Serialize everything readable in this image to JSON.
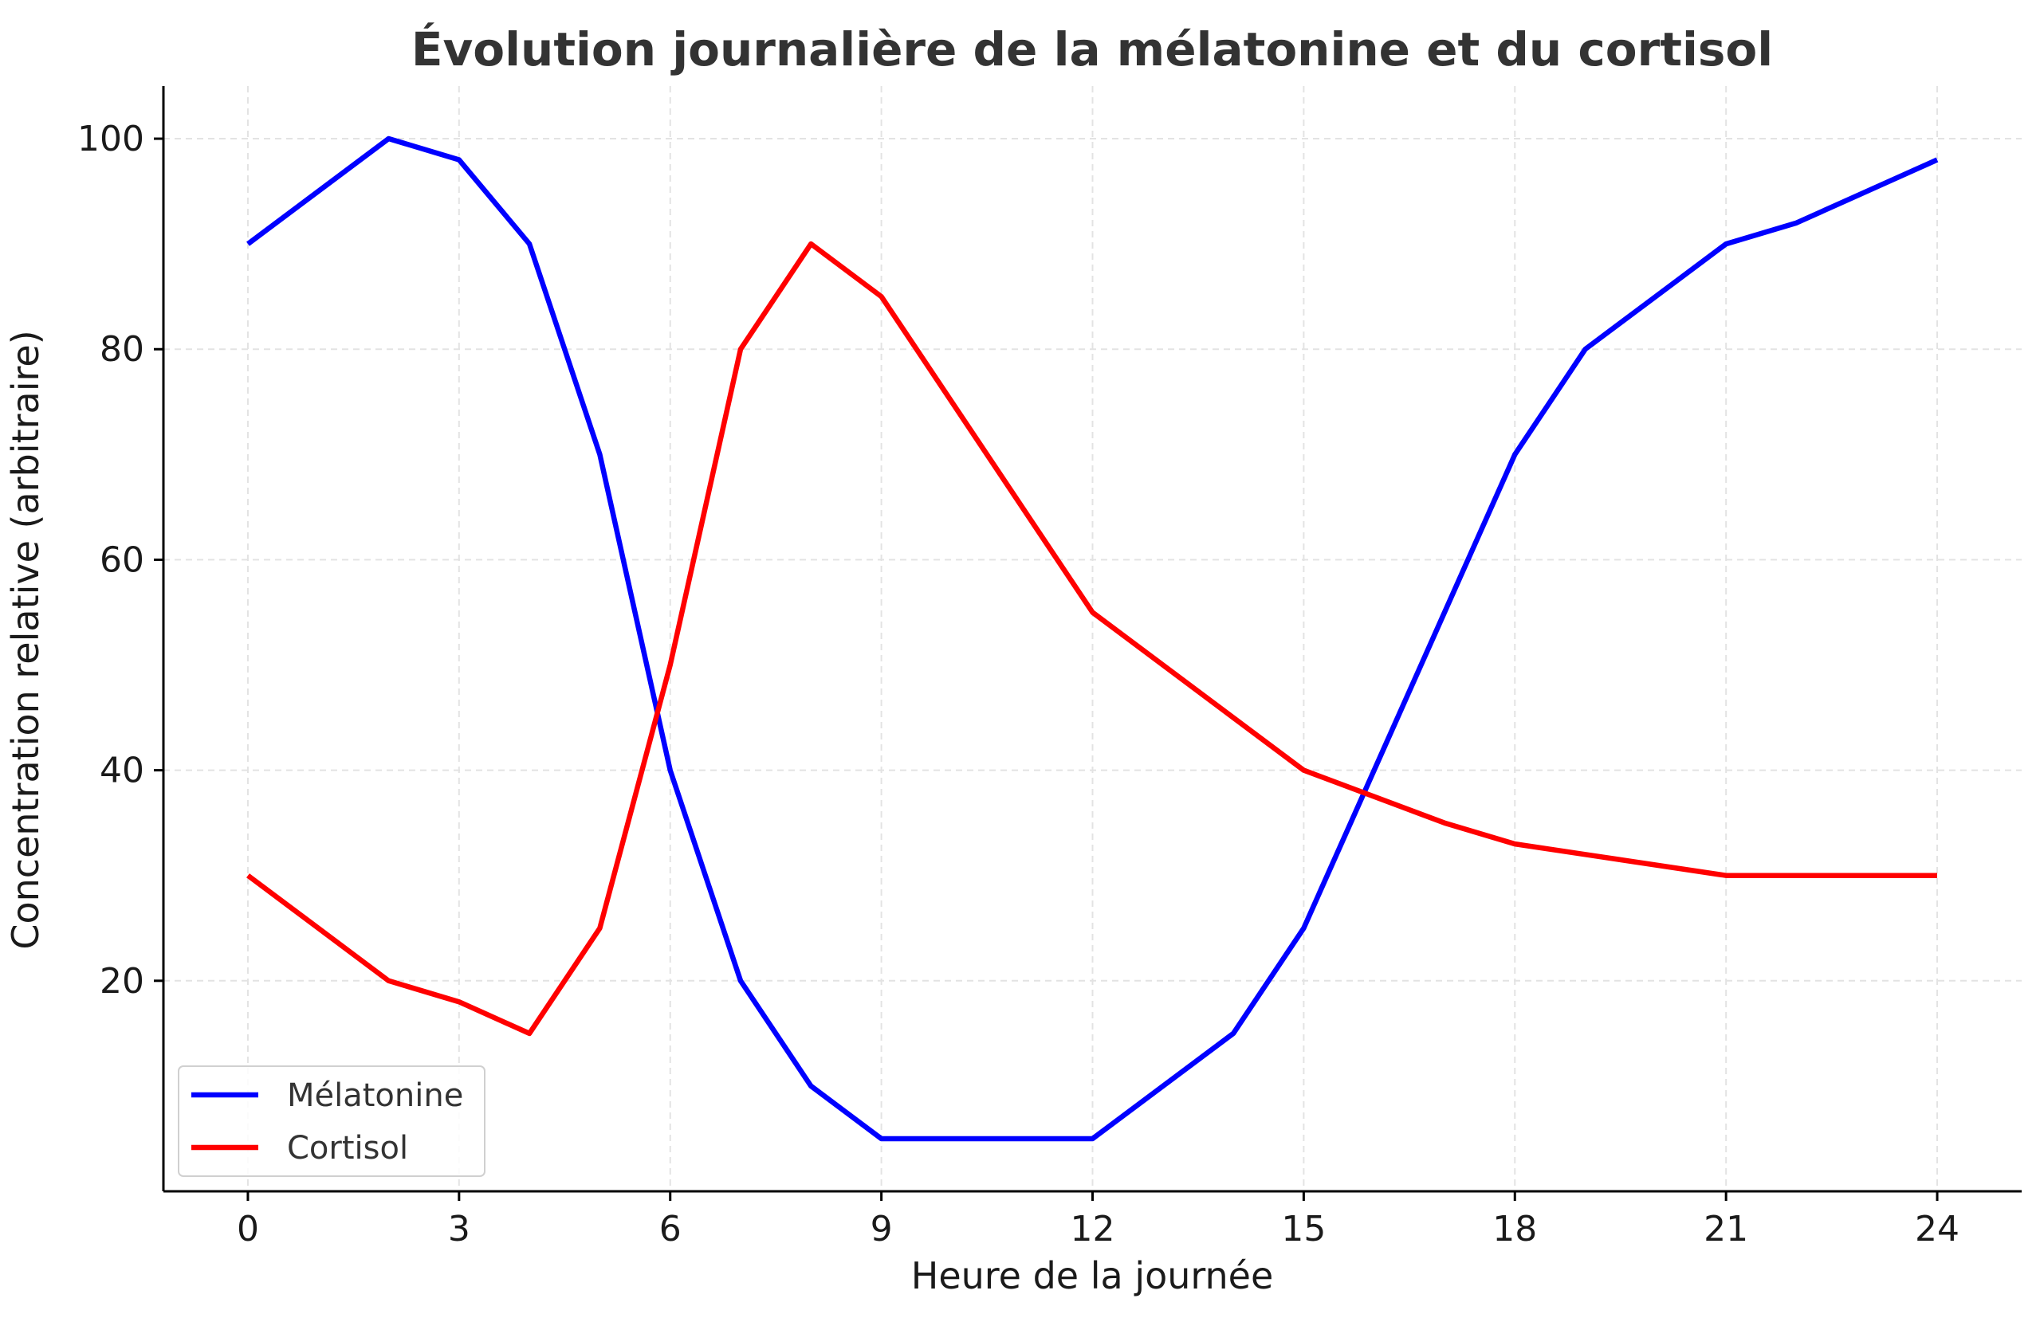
{
  "chart_data": {
    "type": "line",
    "title": "Évolution journalière de la mélatonine et du cortisol",
    "xlabel": "Heure de la journée",
    "ylabel": "Concentration relative (arbitraire)",
    "xlim": [
      -1.2,
      25.2
    ],
    "ylim": [
      0,
      105
    ],
    "xticks": [
      0,
      3,
      6,
      9,
      12,
      15,
      18,
      21,
      24
    ],
    "yticks": [
      20,
      40,
      60,
      80,
      100
    ],
    "grid": true,
    "legend_position": "lower-left",
    "x": [
      0,
      2,
      3,
      4,
      5,
      6,
      7,
      8,
      9,
      12,
      14,
      15,
      17,
      18,
      19,
      21,
      22,
      24
    ],
    "series": [
      {
        "name": "Mélatonine",
        "color": "#0000ff",
        "values": [
          90,
          100,
          98,
          90,
          70,
          40,
          20,
          10,
          5,
          5,
          15,
          25,
          55,
          70,
          80,
          90,
          92,
          98
        ]
      },
      {
        "name": "Cortisol",
        "color": "#ff0000",
        "values": [
          30,
          20,
          18,
          15,
          25,
          50,
          80,
          90,
          85,
          55,
          45,
          40,
          35,
          33,
          32,
          30,
          30,
          30
        ]
      }
    ]
  }
}
